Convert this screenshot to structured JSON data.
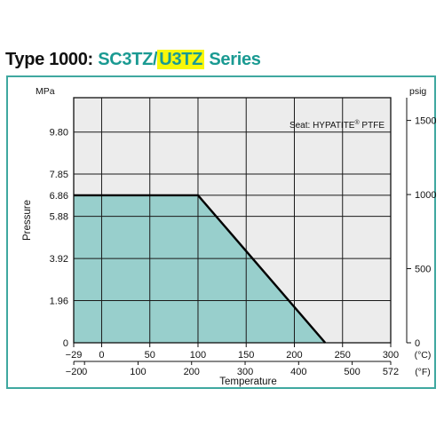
{
  "header": {
    "prefix": "Type 1000",
    "separator": ":",
    "model_a": "SC3TZ",
    "slash": "/",
    "model_b": "U3TZ",
    "suffix": "Series"
  },
  "colors": {
    "teal_text": "#1a9a92",
    "highlight": "#f7f70a",
    "frame": "#3fa8a0",
    "fill_area": "#98cfcc",
    "plot_bg": "#ececec"
  },
  "chart_data": {
    "type": "area",
    "annotation": "Seat: HYPATITE® PTFE",
    "ylabel": "Pressure",
    "xlabel": "Temperature",
    "y_left_unit": "MPa",
    "y_right_unit": "psig",
    "x_top_unit": "(°C)",
    "x_bottom_unit": "(°F)",
    "xlim_c": [
      -29,
      300
    ],
    "ylim_mpa": [
      0,
      11.4
    ],
    "grid": true,
    "x_celsius_ticks": [
      {
        "v": -29,
        "label": "−29"
      },
      {
        "v": 0,
        "label": "0"
      },
      {
        "v": 50,
        "label": "50"
      },
      {
        "v": 100,
        "label": "100"
      },
      {
        "v": 150,
        "label": "150"
      },
      {
        "v": 200,
        "label": "200"
      },
      {
        "v": 250,
        "label": "250"
      },
      {
        "v": 300,
        "label": "300"
      }
    ],
    "x_fahrenheit_ticks": [
      {
        "v": -20,
        "label": "−20"
      },
      {
        "v": 0,
        "label": "0"
      },
      {
        "v": 100,
        "label": "100"
      },
      {
        "v": 200,
        "label": "200"
      },
      {
        "v": 300,
        "label": "300"
      },
      {
        "v": 400,
        "label": "400"
      },
      {
        "v": 500,
        "label": "500"
      },
      {
        "v": 572,
        "label": "572"
      }
    ],
    "y_mpa_ticks": [
      {
        "v": 0,
        "label": "0"
      },
      {
        "v": 1.96,
        "label": "1.96"
      },
      {
        "v": 3.92,
        "label": "3.92"
      },
      {
        "v": 5.88,
        "label": "5.88"
      },
      {
        "v": 6.86,
        "label": "6.86"
      },
      {
        "v": 7.85,
        "label": "7.85"
      },
      {
        "v": 9.8,
        "label": "9.80"
      }
    ],
    "y_psig_ticks": [
      {
        "v": 0,
        "label": "0"
      },
      {
        "v": 500,
        "label": "500"
      },
      {
        "v": 1000,
        "label": "1000"
      },
      {
        "v": 1500,
        "label": "1500"
      }
    ],
    "series": [
      {
        "x": [
          -29,
          100,
          232
        ],
        "y": [
          6.86,
          6.86,
          0
        ]
      }
    ]
  }
}
